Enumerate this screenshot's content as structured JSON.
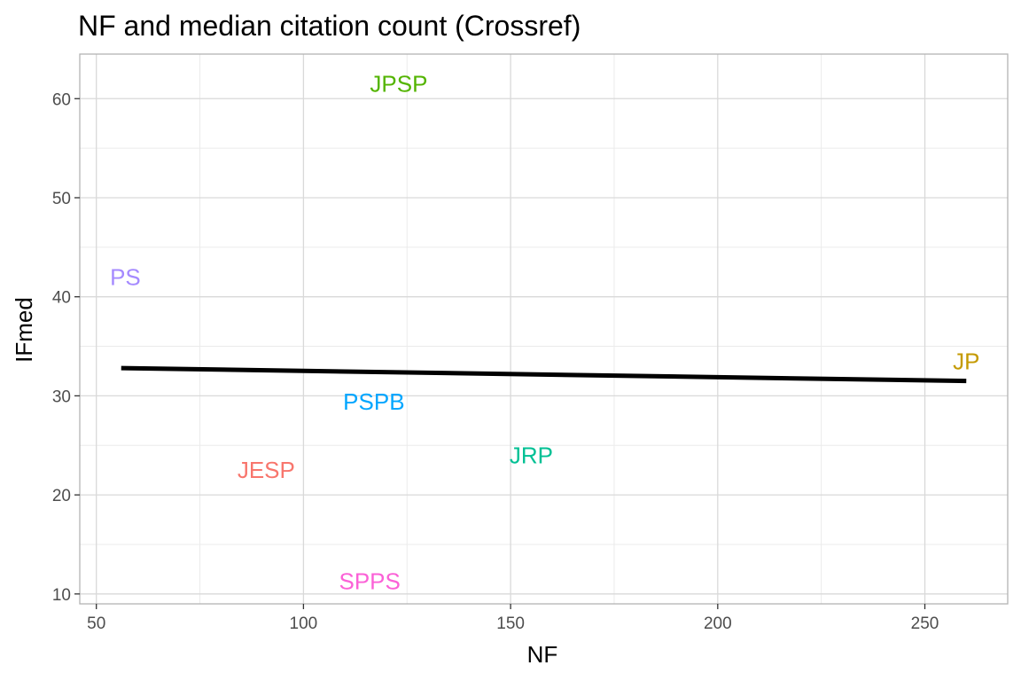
{
  "chart_data": {
    "type": "scatter",
    "title": "NF and median citation count (Crossref)",
    "xlabel": "NF",
    "ylabel": "IFmed",
    "xlim": [
      46,
      270
    ],
    "ylim": [
      9,
      64.5
    ],
    "x_ticks": [
      50,
      100,
      150,
      200,
      250
    ],
    "y_ticks": [
      10,
      20,
      30,
      40,
      50,
      60
    ],
    "x_minor_ticks": [
      75,
      125,
      175,
      225
    ],
    "y_minor_ticks": [
      15,
      25,
      35,
      45,
      55
    ],
    "grid": true,
    "legend": "none",
    "points": [
      {
        "label": "JPSP",
        "x": 123,
        "y": 61.5,
        "color": "#53B400"
      },
      {
        "label": "PS",
        "x": 57,
        "y": 42,
        "color": "#A58AFF"
      },
      {
        "label": "JP",
        "x": 260,
        "y": 33.5,
        "color": "#C49A00"
      },
      {
        "label": "PSPB",
        "x": 117,
        "y": 29.4,
        "color": "#00A6FF"
      },
      {
        "label": "JRP",
        "x": 155,
        "y": 24,
        "color": "#00C094"
      },
      {
        "label": "JESP",
        "x": 91,
        "y": 22.5,
        "color": "#F8766D"
      },
      {
        "label": "SPPS",
        "x": 116,
        "y": 11.3,
        "color": "#FB61D7"
      }
    ],
    "trend_line": {
      "x": [
        56,
        260
      ],
      "y": [
        32.8,
        31.5
      ],
      "color": "#000000"
    }
  }
}
